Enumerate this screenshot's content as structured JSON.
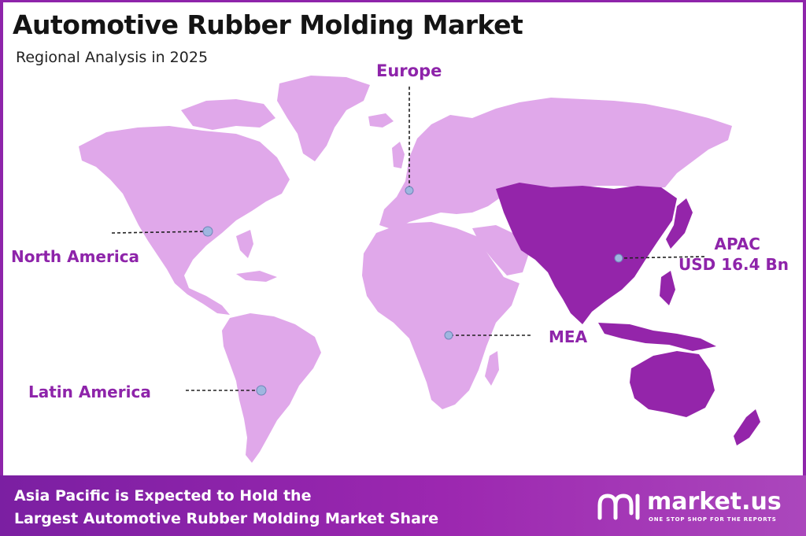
{
  "header": {
    "title": "Automotive Rubber Molding Market",
    "subtitle": "Regional Analysis in 2025"
  },
  "regions": {
    "europe": "Europe",
    "north_america": "North America",
    "latin_america": "Latin America",
    "mea": "MEA",
    "apac": "APAC",
    "apac_value": "USD 16.4 Bn"
  },
  "footer": {
    "line1": "Asia Pacific is Expected to Hold the",
    "line2": "Largest Automotive Rubber Molding Market Share"
  },
  "brand": {
    "name": "market.us",
    "tagline": "ONE STOP SHOP FOR THE REPORTS"
  },
  "colors": {
    "land": "#e0a8ea",
    "highlight": "#9425aa",
    "accent": "#8e24aa",
    "marker": "#9fb6e0"
  }
}
